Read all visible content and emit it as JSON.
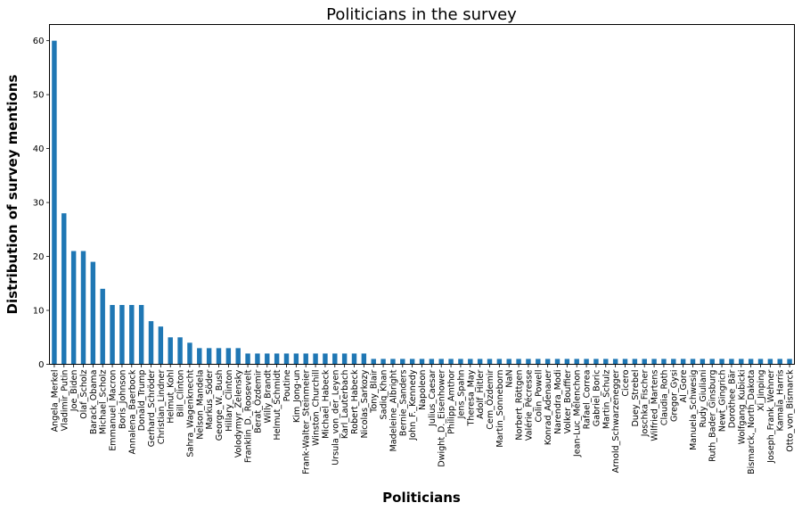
{
  "chart_data": {
    "type": "bar",
    "title": "Politicians in the survey",
    "xlabel": "Politicians",
    "ylabel": "Distribution of survey mentions",
    "ylim": [
      0,
      63
    ],
    "yticks": [
      0,
      10,
      20,
      30,
      40,
      50,
      60
    ],
    "grid": false,
    "bar_color": "#1f77b4",
    "categories": [
      "Angela_Merkel",
      "Vladimir_Putin",
      "Joe_Biden",
      "Olaf_Scholz",
      "Barack_Obama",
      "Michael_Scholz",
      "Emmanuel_Macron",
      "Boris_Johnson",
      "Annalena_Baerbock",
      "Donald_Trump",
      "Gerhard_Schröder",
      "Christian_Lindner",
      "Helmut_Kohl",
      "Bill_Clinton",
      "Sahra_Wagenknecht",
      "Nelson_Mandela",
      "Markus_Söder",
      "George_W._Bush",
      "Hillary_Clinton",
      "Volodymyr_Zelensky",
      "Franklin_D._Roosevelt",
      "Berat_Özdemir",
      "Willy_Brandt",
      "Helmut_Schmidt",
      "Poutine",
      "Kim_Jong-un",
      "Frank-Walter_Steinmeier",
      "Winston_Churchill",
      "Michael_Habeck",
      "Ursula_von_der_Leyen",
      "Karl_Lauterbach",
      "Robert_Habeck",
      "Nicolas_Sarkozy",
      "Tony_Blair",
      "Sadiq_Khan",
      "Madeleine_Albright",
      "Bernie_Sanders",
      "John_F._Kennedy",
      "Napoleon",
      "Julius_Caesar",
      "Dwight_D._Eisenhower",
      "Philipp_Amthor",
      "Jens_Spahn",
      "Theresa_May",
      "Adolf_Hitler",
      "Cem_Özdemir",
      "Martin_Sonneborn",
      "NaN",
      "Norbert_Röttgen",
      "Valérie_Pécresse",
      "Colin_Powell",
      "Konrad_Adenauer",
      "Narendra_Modi",
      "Volker_Bouffier",
      "Jean-Luc_Mélenchon",
      "Rafael_Correa",
      "Gabriel_Boric",
      "Martin_Schulz",
      "Arnold_Schwarzenegger",
      "Cicero",
      "Duey_Strebel",
      "Joschka_Fischer",
      "Wilfried_Martens",
      "Claudia_Roth",
      "Gregor_Gysi",
      "Al_Gore",
      "Manuela_Schwesig",
      "Rudy_Giuliani",
      "Ruth_Bader_Ginsburg",
      "Newt_Gingrich",
      "Dorothee_Bär",
      "Wolfgang_Kubicki",
      "Bismarck,_North_Dakota",
      "Xi_Jinping",
      "Joseph_Frank_Wehner",
      "Kamala_Harris",
      "Otto_von_Bismarck"
    ],
    "values": [
      60,
      28,
      21,
      21,
      19,
      14,
      11,
      11,
      11,
      11,
      8,
      7,
      5,
      5,
      4,
      3,
      3,
      3,
      3,
      3,
      2,
      2,
      2,
      2,
      2,
      2,
      2,
      2,
      2,
      2,
      2,
      2,
      2,
      1,
      1,
      1,
      1,
      1,
      1,
      1,
      1,
      1,
      1,
      1,
      1,
      1,
      1,
      1,
      1,
      1,
      1,
      1,
      1,
      1,
      1,
      1,
      1,
      1,
      1,
      1,
      1,
      1,
      1,
      1,
      1,
      1,
      1,
      1,
      1,
      1,
      1,
      1,
      1,
      1,
      1,
      1,
      1
    ]
  }
}
